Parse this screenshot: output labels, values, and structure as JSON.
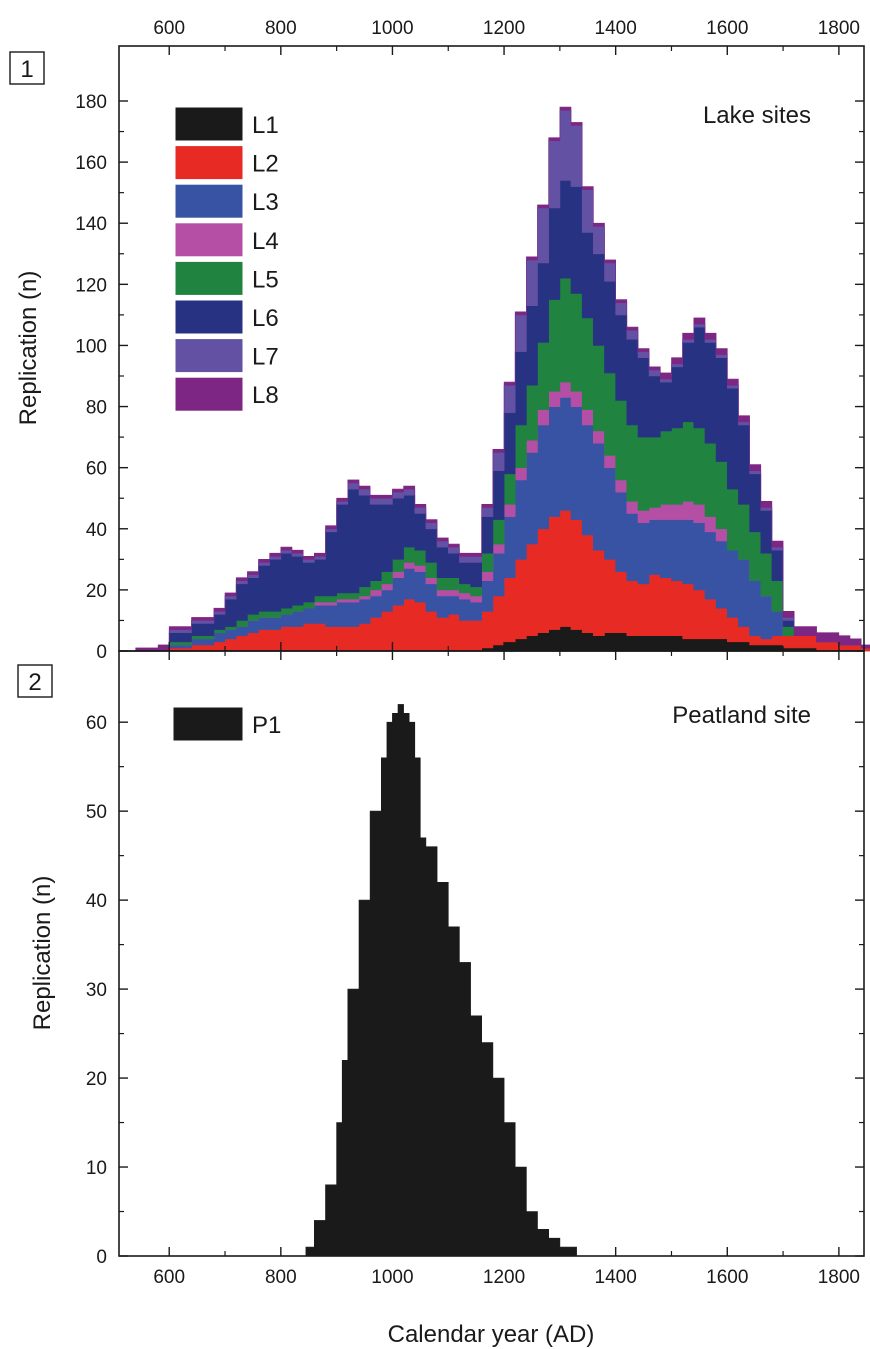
{
  "chart_data": [
    {
      "type": "area",
      "stacked": true,
      "panel_label": "1",
      "title": "Lake sites",
      "xlabel": "",
      "ylabel": "Replication (n)",
      "xlim": [
        510,
        1845
      ],
      "ylim": [
        0,
        198
      ],
      "x_ticks": [
        600,
        800,
        1000,
        1200,
        1400,
        1600,
        1800
      ],
      "y_ticks": [
        0,
        20,
        40,
        60,
        80,
        100,
        120,
        140,
        160,
        180
      ],
      "top_axis_labels": true,
      "legend_position": "top-left",
      "grid": false,
      "x": [
        540,
        580,
        600,
        640,
        660,
        680,
        700,
        720,
        740,
        760,
        780,
        800,
        820,
        840,
        860,
        880,
        900,
        920,
        940,
        960,
        980,
        1000,
        1020,
        1040,
        1060,
        1080,
        1100,
        1120,
        1140,
        1160,
        1180,
        1200,
        1220,
        1240,
        1260,
        1280,
        1300,
        1320,
        1340,
        1360,
        1380,
        1400,
        1420,
        1440,
        1460,
        1480,
        1500,
        1520,
        1540,
        1560,
        1580,
        1600,
        1620,
        1640,
        1660,
        1680,
        1700,
        1720,
        1740,
        1760,
        1780,
        1800,
        1820,
        1840
      ],
      "series": [
        {
          "name": "L1",
          "color": "#1a1a1a",
          "values": [
            0,
            0,
            0,
            0,
            0,
            0,
            0,
            0,
            0,
            0,
            0,
            0,
            0,
            0,
            0,
            0,
            0,
            0,
            0,
            0,
            0,
            0,
            0,
            0,
            0,
            0,
            0,
            0,
            0,
            1,
            2,
            3,
            4,
            5,
            6,
            7,
            8,
            7,
            6,
            5,
            6,
            6,
            5,
            5,
            5,
            5,
            5,
            4,
            4,
            4,
            4,
            3,
            3,
            2,
            2,
            2,
            1,
            1,
            1,
            0,
            0,
            0,
            0,
            0
          ]
        },
        {
          "name": "L2",
          "color": "#e82a24",
          "values": [
            0,
            0,
            1,
            2,
            2,
            3,
            4,
            5,
            6,
            7,
            7,
            8,
            8,
            9,
            9,
            8,
            8,
            8,
            9,
            11,
            13,
            15,
            17,
            16,
            13,
            11,
            12,
            10,
            10,
            12,
            16,
            21,
            26,
            30,
            34,
            37,
            38,
            36,
            32,
            28,
            24,
            20,
            18,
            17,
            20,
            19,
            18,
            18,
            16,
            13,
            10,
            8,
            5,
            3,
            2,
            3,
            4,
            4,
            4,
            3,
            3,
            2,
            2,
            1
          ]
        },
        {
          "name": "L3",
          "color": "#3853a4",
          "values": [
            0,
            0,
            1,
            2,
            2,
            3,
            3,
            3,
            4,
            4,
            4,
            4,
            5,
            5,
            6,
            7,
            8,
            8,
            8,
            7,
            7,
            9,
            10,
            10,
            9,
            7,
            6,
            7,
            6,
            10,
            14,
            20,
            26,
            30,
            34,
            36,
            37,
            37,
            36,
            35,
            30,
            26,
            22,
            20,
            18,
            19,
            20,
            21,
            22,
            22,
            22,
            22,
            22,
            18,
            14,
            8,
            0,
            0,
            0,
            0,
            0,
            0,
            0,
            0
          ]
        },
        {
          "name": "L4",
          "color": "#b44fa5",
          "values": [
            0,
            0,
            0,
            0,
            0,
            0,
            0,
            0,
            0,
            0,
            0,
            0,
            0,
            0,
            1,
            1,
            1,
            1,
            1,
            2,
            2,
            2,
            2,
            2,
            2,
            2,
            2,
            2,
            2,
            3,
            3,
            4,
            4,
            4,
            5,
            5,
            5,
            5,
            5,
            4,
            4,
            4,
            4,
            4,
            4,
            5,
            5,
            6,
            6,
            5,
            4,
            0,
            0,
            0,
            0,
            0,
            0,
            0,
            0,
            0,
            0,
            0,
            0,
            0
          ]
        },
        {
          "name": "L5",
          "color": "#208340",
          "values": [
            0,
            0,
            1,
            1,
            1,
            1,
            1,
            2,
            2,
            2,
            2,
            2,
            2,
            2,
            2,
            2,
            2,
            2,
            3,
            3,
            4,
            4,
            5,
            5,
            5,
            4,
            4,
            3,
            3,
            6,
            8,
            10,
            14,
            18,
            22,
            30,
            34,
            32,
            30,
            28,
            27,
            26,
            25,
            24,
            23,
            24,
            25,
            26,
            25,
            24,
            22,
            20,
            18,
            16,
            14,
            10,
            3,
            0,
            0,
            0,
            0,
            0,
            0,
            0
          ]
        },
        {
          "name": "L6",
          "color": "#283283",
          "values": [
            0,
            0,
            3,
            4,
            4,
            5,
            9,
            12,
            12,
            15,
            17,
            18,
            16,
            13,
            12,
            21,
            29,
            34,
            30,
            25,
            22,
            20,
            17,
            12,
            11,
            10,
            8,
            7,
            8,
            12,
            16,
            20,
            24,
            26,
            26,
            30,
            32,
            35,
            28,
            30,
            30,
            28,
            28,
            26,
            20,
            16,
            20,
            26,
            33,
            33,
            34,
            33,
            26,
            19,
            14,
            10,
            2,
            0,
            0,
            0,
            0,
            0,
            0,
            0
          ]
        },
        {
          "name": "L7",
          "color": "#6351a3",
          "values": [
            0,
            0,
            1,
            1,
            1,
            1,
            1,
            1,
            1,
            1,
            1,
            1,
            1,
            1,
            1,
            1,
            1,
            2,
            2,
            2,
            2,
            2,
            2,
            2,
            2,
            2,
            2,
            2,
            2,
            3,
            6,
            9,
            12,
            15,
            18,
            22,
            23,
            20,
            14,
            9,
            6,
            4,
            3,
            2,
            2,
            1,
            1,
            1,
            1,
            1,
            1,
            1,
            1,
            1,
            1,
            1,
            1,
            0,
            0,
            0,
            0,
            0,
            0,
            0
          ]
        },
        {
          "name": "L8",
          "color": "#7d2683",
          "values": [
            1,
            2,
            1,
            1,
            1,
            1,
            1,
            1,
            1,
            1,
            1,
            1,
            1,
            1,
            1,
            1,
            1,
            1,
            1,
            1,
            1,
            1,
            1,
            1,
            1,
            1,
            1,
            1,
            1,
            1,
            1,
            1,
            1,
            1,
            1,
            1,
            1,
            1,
            1,
            1,
            1,
            1,
            1,
            1,
            1,
            2,
            2,
            2,
            2,
            2,
            2,
            2,
            2,
            2,
            2,
            2,
            2,
            3,
            3,
            3,
            3,
            3,
            2,
            1
          ]
        }
      ]
    },
    {
      "type": "area",
      "panel_label": "2",
      "title": "Peatland site",
      "xlabel": "Calendar year (AD)",
      "ylabel": "Replication (n)",
      "xlim": [
        510,
        1845
      ],
      "ylim": [
        0,
        68
      ],
      "x_ticks": [
        600,
        800,
        1000,
        1200,
        1400,
        1600,
        1800
      ],
      "y_ticks": [
        0,
        10,
        20,
        30,
        40,
        50,
        60
      ],
      "legend_position": "top-left",
      "grid": false,
      "x": [
        845,
        860,
        880,
        900,
        910,
        920,
        940,
        960,
        980,
        990,
        1000,
        1010,
        1020,
        1030,
        1040,
        1050,
        1060,
        1080,
        1100,
        1120,
        1140,
        1160,
        1180,
        1200,
        1220,
        1240,
        1260,
        1280,
        1300,
        1330
      ],
      "series": [
        {
          "name": "P1",
          "color": "#1a1a1a",
          "values": [
            1,
            4,
            8,
            15,
            22,
            30,
            40,
            50,
            56,
            60,
            61,
            62,
            61,
            60,
            56,
            47,
            46,
            42,
            37,
            33,
            27,
            24,
            20,
            15,
            10,
            5,
            3,
            2,
            1,
            0
          ]
        }
      ]
    }
  ]
}
